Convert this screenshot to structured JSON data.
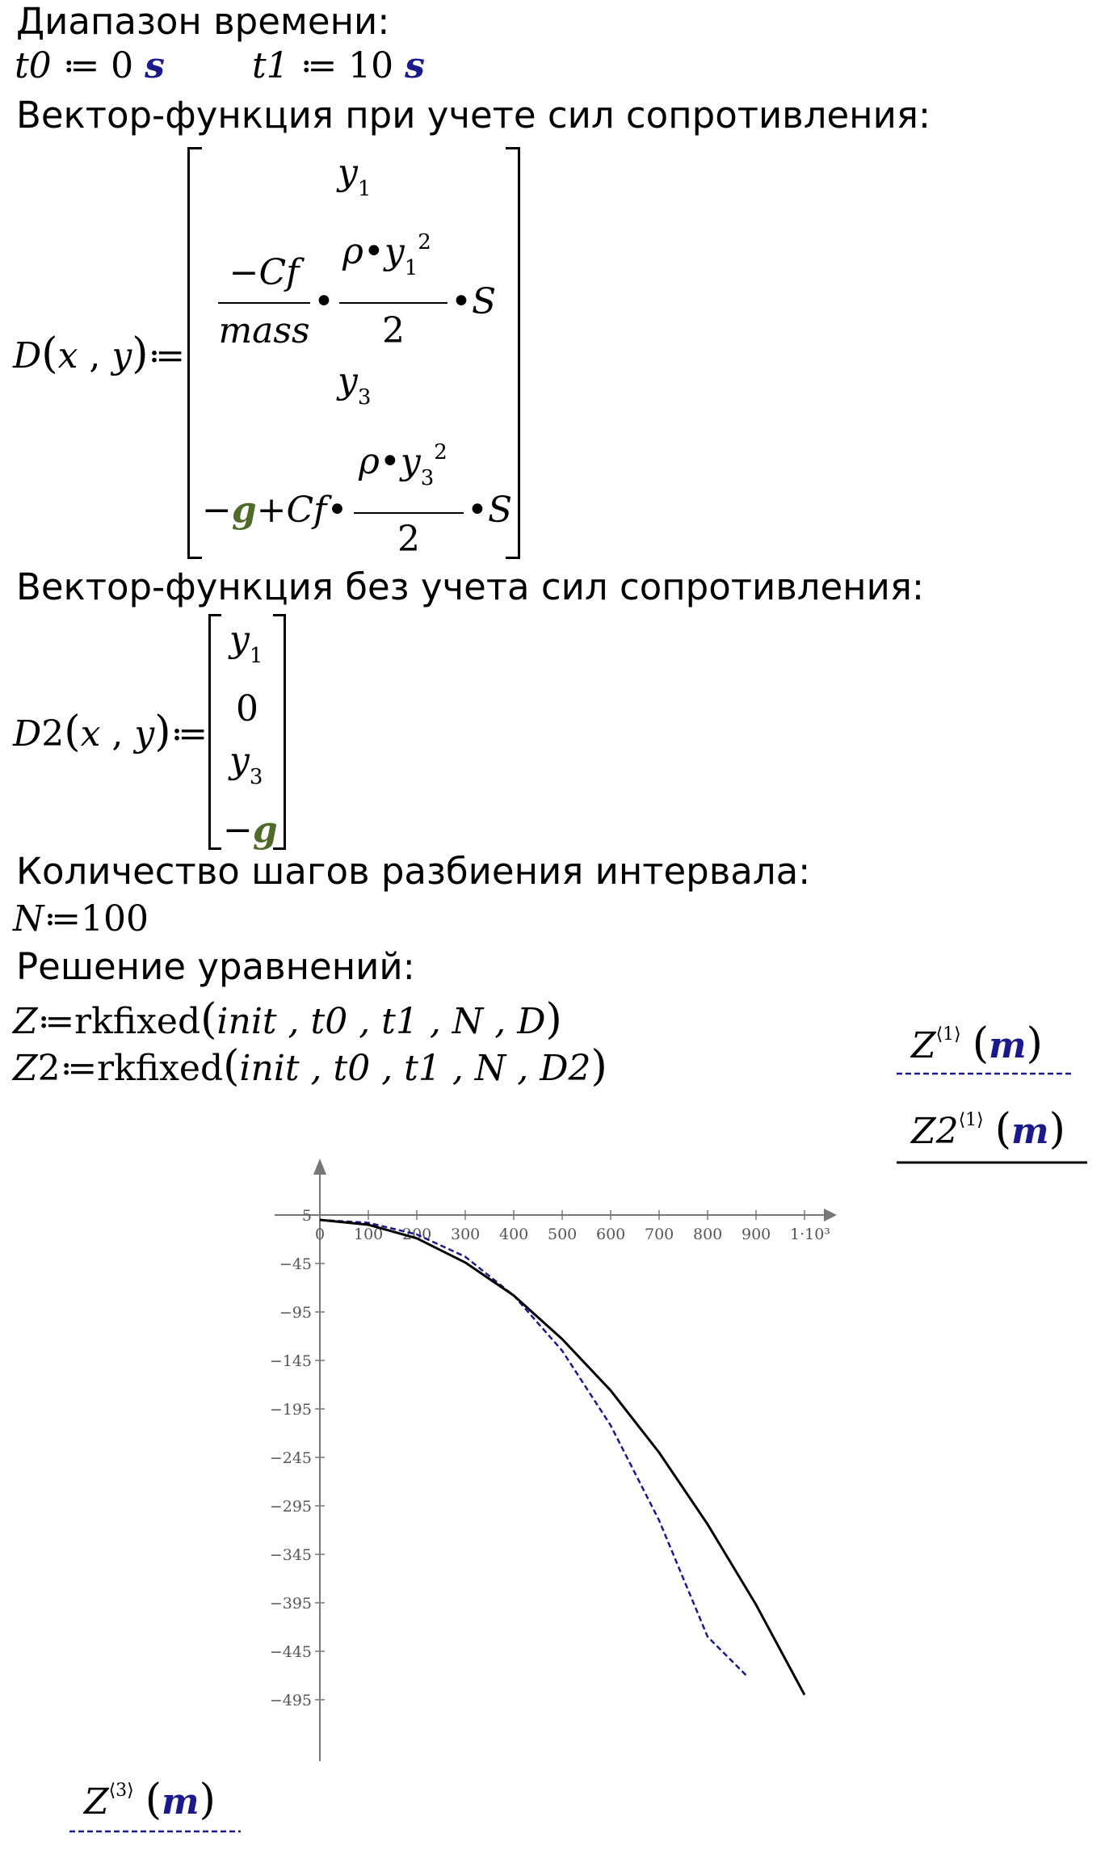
{
  "labels": {
    "time_range": "Диапазон времени:",
    "vector_with_drag": "Вектор-функция при учете сил сопротивления:",
    "vector_without_drag": "Вектор-функция без учета сил сопротивления:",
    "steps_count": "Количество шагов разбиения интервала:",
    "solution": "Решение уравнений:"
  },
  "defs": {
    "t0": {
      "name": "t0",
      "assign": "≔",
      "value": "0",
      "unit": "s"
    },
    "t1": {
      "name": "t1",
      "assign": "≔",
      "value": "10",
      "unit": "s"
    },
    "n": {
      "name": "N",
      "assign": "≔",
      "value": "100"
    },
    "z_fn": "rkfixed",
    "z_args": "init , t0 , t1 , N , D",
    "z2_args": "init , t0 , t1 , N , D2"
  },
  "legend": {
    "z1": {
      "var": "Z",
      "sup": "⟨1⟩",
      "unit": "m"
    },
    "z2": {
      "var": "Z2",
      "sup": "⟨1⟩",
      "unit": "m"
    },
    "z3": {
      "var": "Z",
      "sup": "⟨3⟩",
      "unit": "m"
    }
  },
  "colors": {
    "unit": "#1a1a8c",
    "g_constant": "#4e6b2a",
    "series_drag": "#1a1a8c",
    "series_nodrag": "#000000"
  },
  "chart_data": {
    "type": "line",
    "x_ticks": [
      "0",
      "100",
      "200",
      "300",
      "400",
      "500",
      "600",
      "700",
      "800",
      "900",
      "1·10³"
    ],
    "y_ticks": [
      "5",
      "−45",
      "−95",
      "−145",
      "−195",
      "−245",
      "−295",
      "−345",
      "−395",
      "−445",
      "−495"
    ],
    "xlim": [
      0,
      1050
    ],
    "ylim": [
      -545,
      50
    ],
    "series": [
      {
        "style": "dashed",
        "x": [
          0,
          100,
          200,
          300,
          400,
          500,
          600,
          700,
          800,
          880
        ],
        "y": [
          0,
          -3,
          -15,
          -38,
          -78,
          -135,
          -212,
          -310,
          -430,
          -470
        ]
      },
      {
        "style": "solid",
        "x": [
          0,
          100,
          200,
          300,
          400,
          500,
          600,
          700,
          800,
          900,
          1000
        ],
        "y": [
          0,
          -5,
          -19,
          -44,
          -78,
          -123,
          -176,
          -240,
          -314,
          -397,
          -490
        ]
      }
    ]
  }
}
